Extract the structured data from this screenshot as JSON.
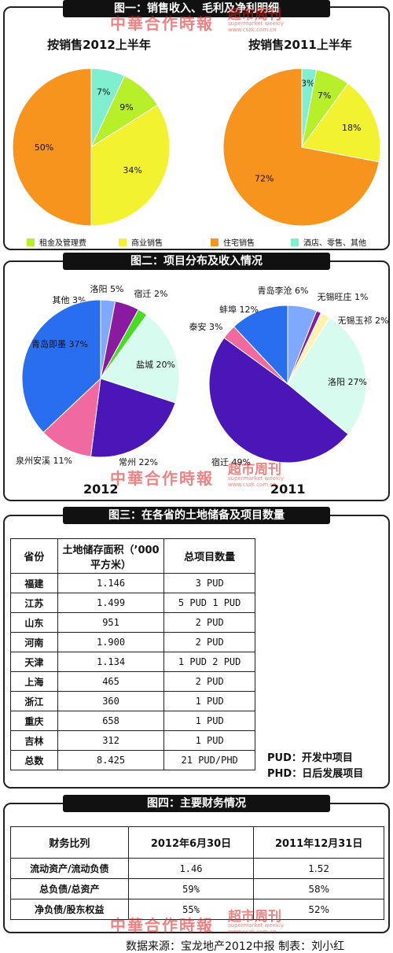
{
  "watermark": {
    "cn": "中華合作時報",
    "brand": "超市周刊",
    "brand_en": "supermarket weekly",
    "url": "www.cszk.com.cn"
  },
  "chart_data": [
    {
      "type": "pie",
      "title": "图一：销售收入、毛利及净利明细",
      "subtitle": "按销售2012上半年",
      "slices": [
        {
          "name": "酒店、零售、其他",
          "value": 7,
          "label": "7%",
          "color": "#7fefd0"
        },
        {
          "name": "租金及管理费",
          "value": 9,
          "label": "9%",
          "color": "#b7ef2a"
        },
        {
          "name": "商业销售",
          "value": 34,
          "label": "34%",
          "color": "#f2f230"
        },
        {
          "name": "住宅销售",
          "value": 50,
          "label": "50%",
          "color": "#f7941d"
        }
      ]
    },
    {
      "type": "pie",
      "title": "图一：销售收入、毛利及净利明细",
      "subtitle": "按销售2011上半年",
      "slices": [
        {
          "name": "酒店、零售、其他",
          "value": 3,
          "label": "3%",
          "color": "#7fefd0"
        },
        {
          "name": "租金及管理费",
          "value": 7,
          "label": "7%",
          "color": "#b7ef2a"
        },
        {
          "name": "商业销售",
          "value": 18,
          "label": "18%",
          "color": "#f2f230"
        },
        {
          "name": "住宅销售",
          "value": 72,
          "label": "72%",
          "color": "#f7941d"
        }
      ]
    },
    {
      "type": "pie",
      "title": "图二：项目分布及收入情况",
      "subtitle": "2012",
      "slices": [
        {
          "name": "其他",
          "value": 3,
          "label": "其他 3%",
          "color": "#7fa8ff"
        },
        {
          "name": "洛阳",
          "value": 5,
          "label": "洛阳 5%",
          "color": "#8a1aa0"
        },
        {
          "name": "宿迁",
          "value": 2,
          "label": "宿迁 2%",
          "color": "#44dd22"
        },
        {
          "name": "盐城",
          "value": 20,
          "label": "盐城 20%",
          "color": "#d8fbf0"
        },
        {
          "name": "常州",
          "value": 22,
          "label": "常州 22%",
          "color": "#4a16b8"
        },
        {
          "name": "泉州安溪",
          "value": 11,
          "label": "泉州安溪 11%",
          "color": "#f06aa0"
        },
        {
          "name": "青岛即墨",
          "value": 37,
          "label": "青岛即墨 37%",
          "color": "#2a6ef0"
        }
      ]
    },
    {
      "type": "pie",
      "title": "图二：项目分布及收入情况",
      "subtitle": "2011",
      "slices": [
        {
          "name": "青岛李沧",
          "value": 6,
          "label": "青岛李沧 6%",
          "color": "#7fa8ff"
        },
        {
          "name": "无锡旺庄",
          "value": 1,
          "label": "无锡旺庄 1%",
          "color": "#8a1aa0"
        },
        {
          "name": "无锡玉祁",
          "value": 2,
          "label": "无锡玉祁 2%",
          "color": "#fbf3b0"
        },
        {
          "name": "洛阳",
          "value": 27,
          "label": "洛阳 27%",
          "color": "#d8fbf0"
        },
        {
          "name": "宿迁",
          "value": 49,
          "label": "宿迁 49%",
          "color": "#4a16b8"
        },
        {
          "name": "泰安",
          "value": 3,
          "label": "泰安 3%",
          "color": "#f06aa0"
        },
        {
          "name": "蚌埠",
          "value": 12,
          "label": "蚌埠 12%",
          "color": "#2a6ef0"
        }
      ]
    },
    {
      "type": "table",
      "title": "图三：在各省的土地储备及项目数量",
      "columns": [
        "省份",
        "土地储存面积（’000平方米）",
        "总项目数量"
      ],
      "rows": [
        [
          "福建",
          "1.146",
          "3 PUD"
        ],
        [
          "江苏",
          "1.499",
          "5 PUD 1 PUD"
        ],
        [
          "山东",
          "951",
          "2 PUD"
        ],
        [
          "河南",
          "1.900",
          "2 PUD"
        ],
        [
          "天津",
          "1.134",
          "1 PUD 2 PUD"
        ],
        [
          "上海",
          "465",
          "2 PUD"
        ],
        [
          "浙江",
          "360",
          "1 PUD"
        ],
        [
          "重庆",
          "658",
          "1 PUD"
        ],
        [
          "吉林",
          "312",
          "1 PUD"
        ],
        [
          "总数",
          "8.425",
          "21 PUD/PHD"
        ]
      ],
      "notes": [
        "PUD：开发中项目",
        "PHD：日后发展项目"
      ]
    },
    {
      "type": "table",
      "title": "图四：主要财务情况",
      "columns": [
        "财务比列",
        "2012年6月30日",
        "2011年12月31日"
      ],
      "rows": [
        [
          "流动资产/流动负债",
          "1.46",
          "1.52"
        ],
        [
          "总负债/总资产",
          "59%",
          "58%"
        ],
        [
          "净负债/股东权益",
          "55%",
          "52%"
        ]
      ]
    }
  ],
  "legend": [
    {
      "label": "租金及管理费",
      "color": "#b7ef2a"
    },
    {
      "label": "商业销售",
      "color": "#f2f230"
    },
    {
      "label": "住宅销售",
      "color": "#f7941d"
    },
    {
      "label": "酒店、零售、其他",
      "color": "#7fefd0"
    }
  ],
  "source": "数据来源：宝龙地产2012中报  制表：刘小红"
}
